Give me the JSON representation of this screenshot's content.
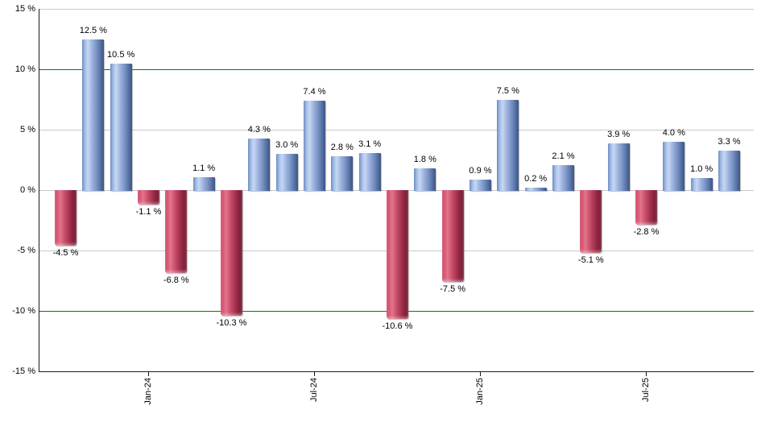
{
  "chart_data": {
    "type": "bar",
    "title": "",
    "xlabel": "",
    "ylabel": "",
    "unit": "%",
    "ylim": [
      -15,
      15
    ],
    "grid": true,
    "legend": false,
    "y_ticks": [
      {
        "value": 15,
        "label": "15 %"
      },
      {
        "value": 10,
        "label": "10 %"
      },
      {
        "value": 5,
        "label": "5 %"
      },
      {
        "value": 0,
        "label": "0 %"
      },
      {
        "value": -5,
        "label": "-5 %"
      },
      {
        "value": -10,
        "label": "-10 %"
      },
      {
        "value": -15,
        "label": "-15 %"
      }
    ],
    "threshold_lines": [
      10,
      -10
    ],
    "values": [
      -4.5,
      12.5,
      10.5,
      -1.1,
      -6.8,
      1.1,
      -10.3,
      4.3,
      3.0,
      7.4,
      2.8,
      3.1,
      -10.6,
      1.8,
      -7.5,
      0.9,
      7.5,
      0.2,
      2.1,
      -5.1,
      3.9,
      -2.8,
      4.0,
      1.0,
      3.3
    ],
    "bar_value_labels": [
      "-4.5 %",
      "12.5 %",
      "10.5 %",
      "-1.1 %",
      "-6.8 %",
      "1.1 %",
      "-10.3 %",
      "4.3 %",
      "3.0 %",
      "7.4 %",
      "2.8 %",
      "3.1 %",
      "-10.6 %",
      "1.8 %",
      "-7.5 %",
      "0.9 %",
      "7.5 %",
      "0.2 %",
      "2.1 %",
      "-5.1 %",
      "3.9 %",
      "-2.8 %",
      "4.0 %",
      "1.0 %",
      "3.3 %"
    ],
    "x_ticks": [
      {
        "bar_index": 3,
        "label": "Jan-24"
      },
      {
        "bar_index": 9,
        "label": "Jul-24"
      },
      {
        "bar_index": 15,
        "label": "Jan-25"
      },
      {
        "bar_index": 21,
        "label": "Jul-25"
      }
    ],
    "colors": {
      "background": "#ffffff",
      "gridline": "#c9c9c9",
      "threshold_line": "#008000",
      "axis": "#1a1a1a",
      "text": "#000000",
      "positive_bar": "#6d8cc2",
      "negative_bar": "#c22a50",
      "positive_gradient": "#6c8cc2 0%, #a7c0e8 14%, #c6d7f3 27%, #9db3de 46%, #7f98c8 63%, #5b76a9 82%, #3b5485 100%",
      "negative_gradient": "#cf3f62 0%, #e2758c 25%, #c94f6b 45%, #a93551 65%, #8c2440 82%, #701b31 100%"
    }
  }
}
